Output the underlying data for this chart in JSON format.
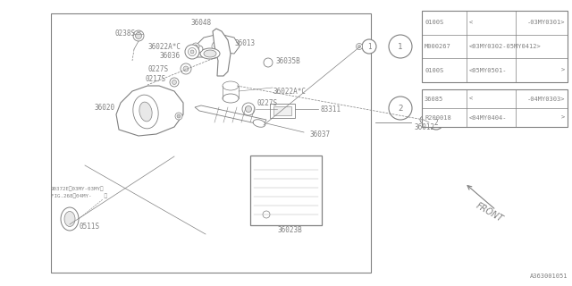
{
  "bg_color": "#ffffff",
  "line_color": "#808080",
  "dark_line": "#555555",
  "diagram_number": "A363001051",
  "table1": {
    "rows": [
      [
        "0100S",
        "<",
        "-03MY0301>"
      ],
      [
        "M000267",
        "<03MY0302-05MY0412>",
        ""
      ],
      [
        "0100S",
        "<05MY0501-",
        ">"
      ]
    ]
  },
  "table2": {
    "rows": [
      [
        "36085",
        "<",
        "-04MY0303>"
      ],
      [
        "R200018",
        "<04MY0404-",
        ">"
      ]
    ]
  },
  "front_label": "FRONT"
}
